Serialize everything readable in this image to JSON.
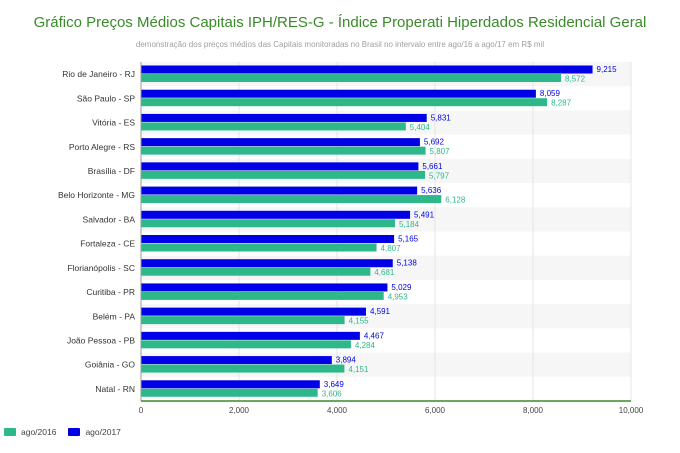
{
  "chart_data": {
    "type": "bar",
    "orientation": "horizontal",
    "title": "Gráfico Preços Médios Capitais IPH/RES-G - Índice Properati Hiperdados Residencial Geral",
    "subtitle": "demonstração dos preços médios das Capitais monitoradas no Brasil no intervalo entre ago/16 a ago/17 em R$ mil",
    "categories": [
      "Rio de Janeiro - RJ",
      "São Paulo - SP",
      "Vitória - ES",
      "Porto Alegre - RS",
      "Brasília - DF",
      "Belo Horizonte - MG",
      "Salvador - BA",
      "Fortaleza - CE",
      "Florianópolis - SC",
      "Curitiba - PR",
      "Belém - PA",
      "João Pessoa - PB",
      "Goiânia - GO",
      "Natal - RN"
    ],
    "series": [
      {
        "name": "ago/2017",
        "color": "#0000e6",
        "values": [
          9215,
          8059,
          5831,
          5692,
          5661,
          5636,
          5491,
          5165,
          5138,
          5029,
          4591,
          4467,
          3894,
          3649
        ],
        "labels": [
          "9,215",
          "8,059",
          "5,831",
          "5,692",
          "5,661",
          "5,636",
          "5,491",
          "5,165",
          "5,138",
          "5,029",
          "4,591",
          "4,467",
          "3,894",
          "3,649"
        ]
      },
      {
        "name": "ago/2016",
        "color": "#2eb88a",
        "values": [
          8572,
          8287,
          5404,
          5807,
          5797,
          6128,
          5184,
          4807,
          4681,
          4953,
          4155,
          4284,
          4151,
          3606
        ],
        "labels": [
          "8,572",
          "8,287",
          "5,404",
          "5,807",
          "5,797",
          "6,128",
          "5,184",
          "4,807",
          "4,681",
          "4,953",
          "4,155",
          "4,284",
          "4,151",
          "3,606"
        ]
      }
    ],
    "xlim": [
      0,
      10000
    ],
    "x_ticks": [
      0,
      2000,
      4000,
      6000,
      8000,
      10000
    ],
    "x_tick_labels": [
      "0",
      "2,000",
      "4,000",
      "6,000",
      "8,000",
      "10,000"
    ],
    "grid": true,
    "legend": {
      "position": "bottom-left",
      "items": [
        "ago/2016",
        "ago/2017"
      ]
    },
    "colors": {
      "title": "#3a8a2a",
      "axis": "#3a8a2a",
      "band": "#f6f6f6",
      "grid": "#e4e4e4"
    }
  }
}
